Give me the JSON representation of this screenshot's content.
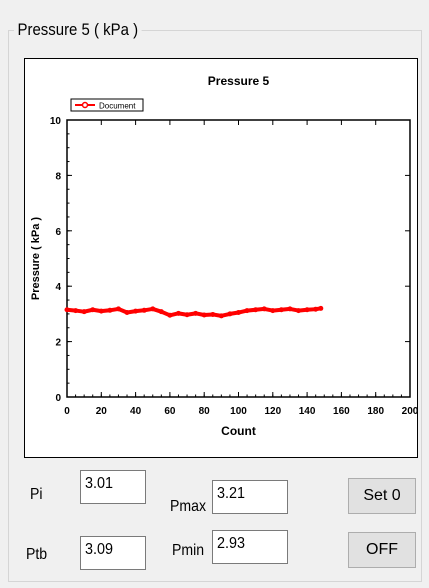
{
  "group": {
    "title": "Pressure 5 ( kPa )"
  },
  "chart_data": {
    "type": "line",
    "title": "Pressure 5",
    "xlabel": "Count",
    "ylabel": "Pressure ( kPa )",
    "xlim": [
      0,
      200
    ],
    "ylim": [
      0,
      10
    ],
    "xticks": [
      "0",
      "20",
      "40",
      "60",
      "80",
      "100",
      "120",
      "140",
      "160",
      "180",
      "200"
    ],
    "yticks": [
      "0",
      "2",
      "4",
      "6",
      "8",
      "10"
    ],
    "legend": {
      "placement": "top-left"
    },
    "series": [
      {
        "name": "Document",
        "color": "#ff0000",
        "x": [
          0,
          5,
          10,
          15,
          20,
          25,
          30,
          35,
          40,
          45,
          50,
          55,
          60,
          65,
          70,
          75,
          80,
          85,
          90,
          95,
          100,
          105,
          110,
          115,
          120,
          125,
          130,
          135,
          140,
          145,
          148
        ],
        "values": [
          3.15,
          3.12,
          3.08,
          3.15,
          3.1,
          3.13,
          3.18,
          3.05,
          3.1,
          3.13,
          3.18,
          3.08,
          2.95,
          3.02,
          2.97,
          3.02,
          2.96,
          2.98,
          2.93,
          3.0,
          3.05,
          3.12,
          3.15,
          3.18,
          3.12,
          3.15,
          3.18,
          3.12,
          3.15,
          3.17,
          3.2
        ]
      }
    ]
  },
  "readouts": {
    "pi_label": "Pi",
    "pi_value": "3.01",
    "ptb_label": "Ptb",
    "ptb_value": "3.09",
    "pmax_label": "Pmax",
    "pmax_value": "3.21",
    "pmin_label": "Pmin",
    "pmin_value": "2.93"
  },
  "buttons": {
    "set0": "Set 0",
    "off": "OFF"
  }
}
